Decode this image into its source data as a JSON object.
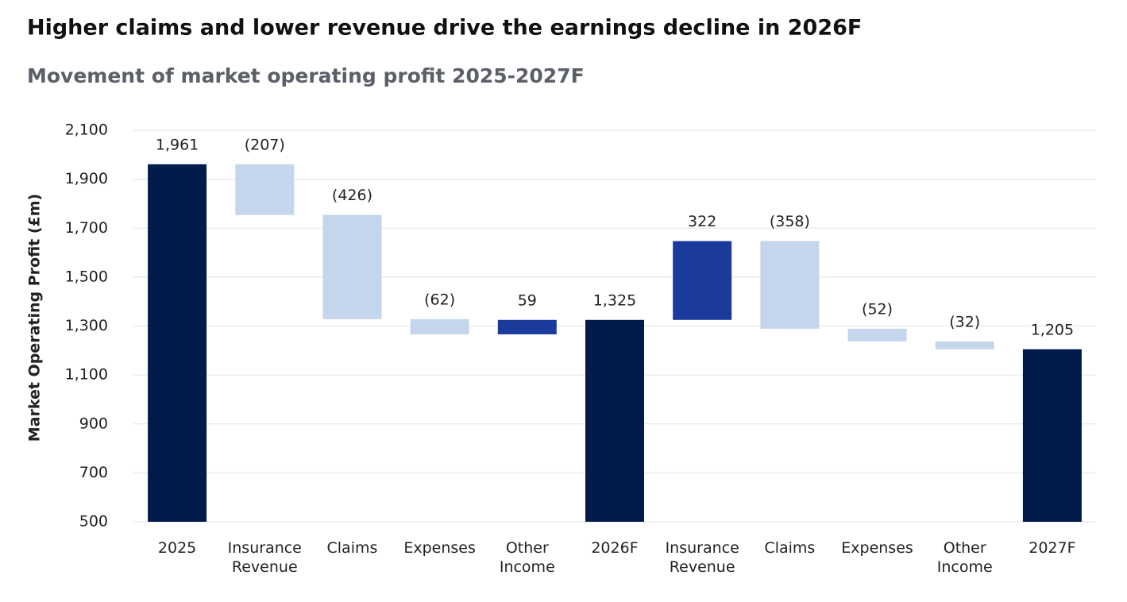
{
  "chart_data": {
    "type": "waterfall",
    "title": "Higher claims and lower revenue drive the earnings decline in 2026F",
    "subtitle": "Movement of market operating profit 2025-2027F",
    "y_label": "Market Operating Profit (£m)",
    "categories": [
      "2025",
      "Insurance Revenue",
      "Claims",
      "Expenses",
      "Other Income",
      "2026F",
      "Insurance Revenue",
      "Claims",
      "Expenses",
      "Other Income",
      "2027F"
    ],
    "values": [
      1961,
      -207,
      -426,
      -62,
      59,
      1325,
      322,
      -358,
      -52,
      -32,
      1205
    ],
    "value_labels": [
      "1,961",
      "(207)",
      "(426)",
      "(62)",
      "59",
      "1,325",
      "322",
      "(358)",
      "(52)",
      "(32)",
      "1,205"
    ],
    "measure": [
      "absolute",
      "relative",
      "relative",
      "relative",
      "relative",
      "absolute",
      "relative",
      "relative",
      "relative",
      "relative",
      "absolute"
    ],
    "total_color": "#011c4b",
    "increase_color": "#1a3a9c",
    "decrease_color": "#c5d5ec",
    "ylim": [
      500,
      2100
    ],
    "yticks": [
      500,
      700,
      900,
      {
        "value": 1100,
        "label": "1,100"
      },
      {
        "value": 1300,
        "label": "1,300"
      },
      {
        "value": 1500,
        "label": "1,500"
      },
      {
        "value": 1700,
        "label": "1,700"
      },
      {
        "value": 1900,
        "label": "1,900"
      },
      {
        "value": 2100,
        "label": "2,100"
      }
    ],
    "grid": true
  }
}
